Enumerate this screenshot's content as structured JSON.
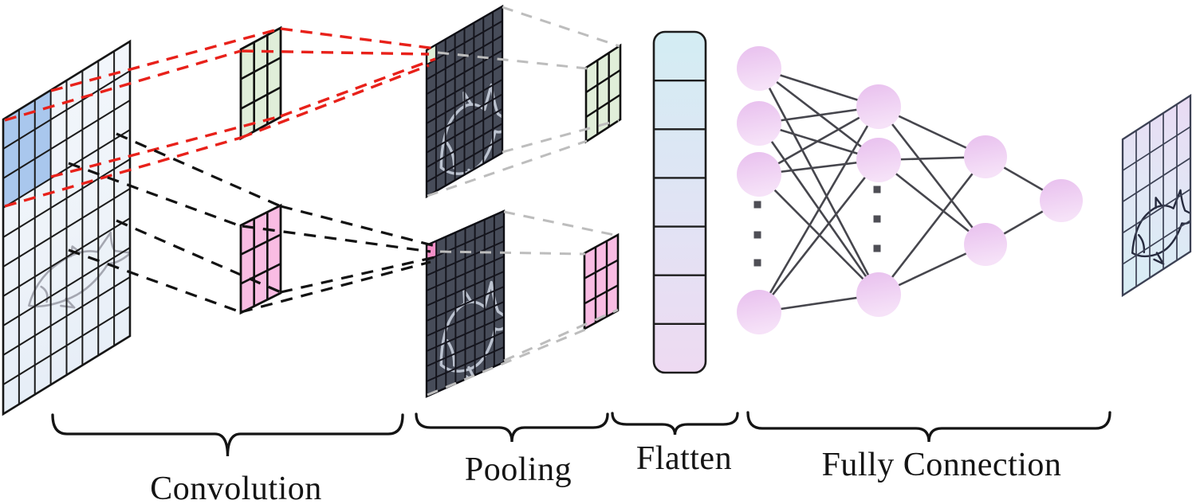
{
  "stages": [
    {
      "id": "convolution",
      "label": "Convolution"
    },
    {
      "id": "pooling",
      "label": "Pooling"
    },
    {
      "id": "flatten",
      "label": "Flatten"
    },
    {
      "id": "fully_connection",
      "label": "Fully Connection"
    }
  ],
  "diagram": {
    "input_image": {
      "description": "fish sketch on skewed grid",
      "cols": 8,
      "rows": 10,
      "receptive_field": {
        "cols": 3,
        "rows": 3,
        "color": "#a9c7ed"
      }
    },
    "conv_kernels": [
      {
        "id": "kernel-green",
        "cols": 3,
        "rows": 3,
        "color": "#e0eed9"
      },
      {
        "id": "kernel-pink",
        "cols": 3,
        "rows": 3,
        "color": "#f9bce3"
      }
    ],
    "feature_maps": [
      {
        "id": "feature-map-top",
        "cols": 8,
        "rows": 10,
        "fill": "#474c59",
        "highlight_color": "#dff0d8"
      },
      {
        "id": "feature-map-bottom",
        "cols": 8,
        "rows": 10,
        "fill": "#474c59",
        "highlight_color": "#f390c8"
      }
    ],
    "pooled_grids": [
      {
        "id": "pooled-green",
        "cols": 3,
        "rows": 3,
        "color": "#e0eed9"
      },
      {
        "id": "pooled-pink",
        "cols": 3,
        "rows": 3,
        "color": "#f9bce3"
      }
    ],
    "flatten_vector": {
      "cells": 7,
      "top_color": "#d3edf3",
      "bottom_color": "#eedaf2"
    },
    "network": {
      "layers": [
        {
          "visible_nodes": 4,
          "ellipsis_dots": 3
        },
        {
          "visible_nodes": 3,
          "ellipsis_dots": 3
        },
        {
          "visible_nodes": 2,
          "ellipsis_dots": 0
        },
        {
          "visible_nodes": 1,
          "ellipsis_dots": 0
        }
      ],
      "node_color_top": "#e8bfee",
      "node_color_bottom": "#f6e2f8",
      "edge_color": "#46464d"
    },
    "output_image": {
      "description": "fish sketch on skewed grid",
      "cols": 5,
      "rows": 5
    },
    "connector_colors": {
      "red": "#e8211a",
      "black": "#121212",
      "gray": "#bdbdbd"
    }
  }
}
